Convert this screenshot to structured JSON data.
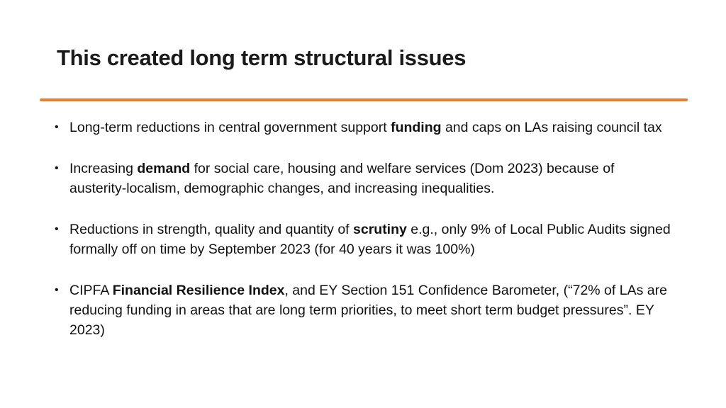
{
  "slide": {
    "title": "This created long term structural issues",
    "accent_color": "#ED7D31",
    "bullet_glyph": "•",
    "bullets": [
      {
        "pre": "Long-term reductions in central government support ",
        "bold": "funding",
        "post": " and caps on LAs raising council tax"
      },
      {
        "pre": "Increasing ",
        "bold": "demand",
        "post": " for social care, housing and welfare services (Dom 2023) because of austerity-localism, demographic changes, and increasing inequalities."
      },
      {
        "pre": "Reductions in strength, quality and quantity of ",
        "bold": "scrutiny",
        "post": "  e.g., only 9% of Local Public Audits signed formally off on time by September 2023 (for 40 years it was 100%)"
      },
      {
        "pre": "CIPFA ",
        "bold": "Financial Resilience Index",
        "post": ", and EY Section 151 Confidence  Barometer, (“72% of LAs are reducing funding in areas that are long term priorities, to meet short term budget pressures”. EY 2023)"
      }
    ]
  }
}
